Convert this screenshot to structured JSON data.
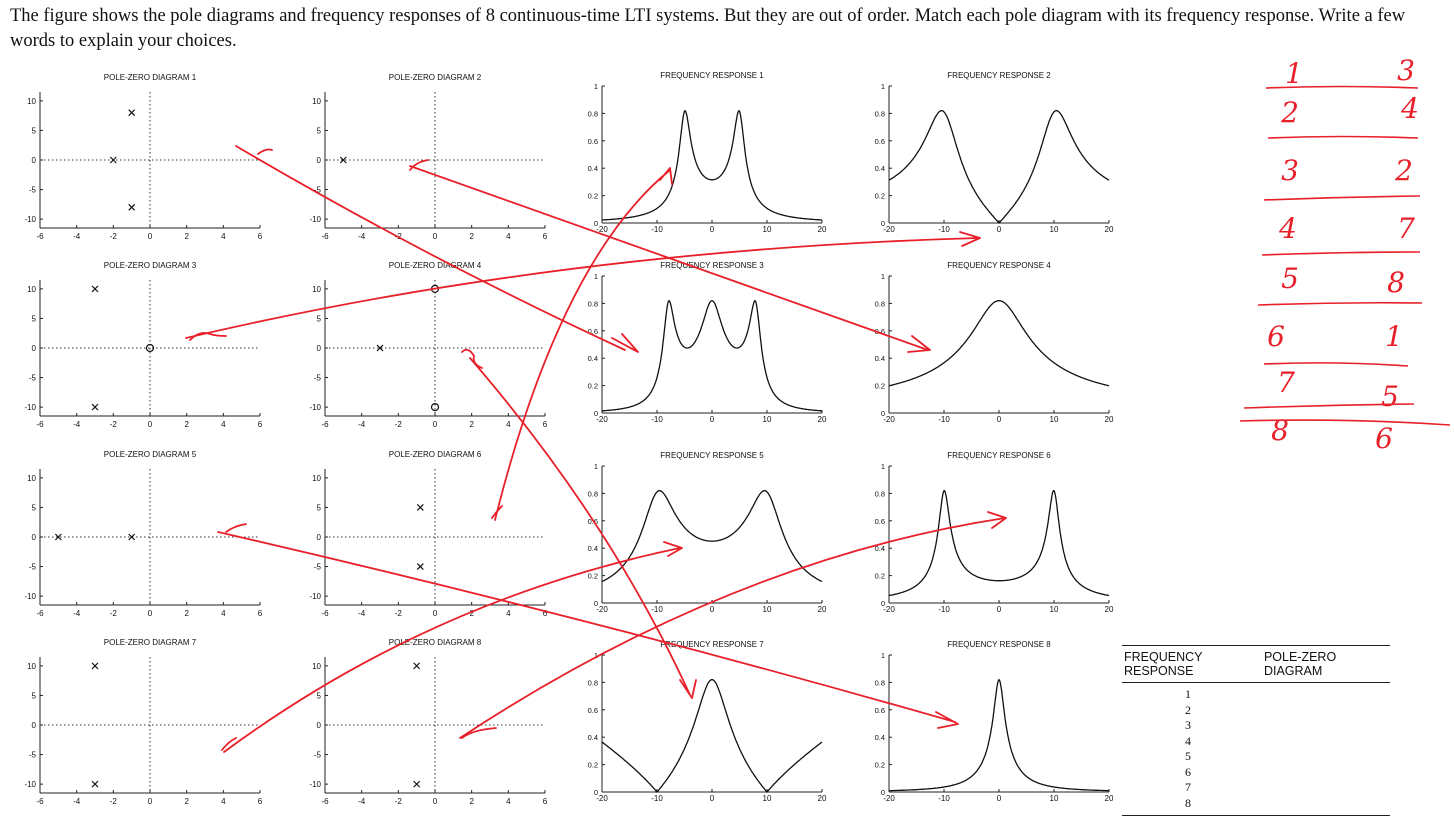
{
  "prompt": "The figure shows the pole diagrams and frequency responses of 8 continuous-time LTI systems. But they are out of order. Match each pole diagram with its frequency response. Write a few words to explain your choices.",
  "pole_zero_diagrams": [
    {
      "title": "POLE-ZERO DIAGRAM 1",
      "poles": [
        [
          -1,
          8
        ],
        [
          -1,
          -8
        ],
        [
          -2,
          0
        ]
      ],
      "zeros": []
    },
    {
      "title": "POLE-ZERO DIAGRAM 2",
      "poles": [
        [
          -5,
          0
        ]
      ],
      "zeros": []
    },
    {
      "title": "POLE-ZERO DIAGRAM 3",
      "poles": [
        [
          -3,
          10
        ],
        [
          -3,
          -10
        ]
      ],
      "zeros": [
        [
          0,
          0
        ]
      ]
    },
    {
      "title": "POLE-ZERO DIAGRAM 4",
      "poles": [
        [
          -3,
          0
        ]
      ],
      "zeros": [
        [
          0,
          10
        ],
        [
          0,
          -10
        ]
      ]
    },
    {
      "title": "POLE-ZERO DIAGRAM 5",
      "poles": [
        [
          -5,
          0
        ],
        [
          -1,
          0
        ]
      ],
      "zeros": []
    },
    {
      "title": "POLE-ZERO DIAGRAM 6",
      "poles": [
        [
          -0.8,
          5
        ],
        [
          -0.8,
          -5
        ]
      ],
      "zeros": []
    },
    {
      "title": "POLE-ZERO DIAGRAM 7",
      "poles": [
        [
          -3,
          10
        ],
        [
          -3,
          -10
        ]
      ],
      "zeros": []
    },
    {
      "title": "POLE-ZERO DIAGRAM 8",
      "poles": [
        [
          -1,
          10
        ],
        [
          -1,
          -10
        ]
      ],
      "zeros": []
    }
  ],
  "pz_axes": {
    "xticks": [
      "-6",
      "-4",
      "-2",
      "0",
      "2",
      "4",
      "6"
    ],
    "yticks": [
      "10",
      "5",
      "0",
      "-5",
      "-10"
    ]
  },
  "frequency_responses": [
    {
      "title": "FREQUENCY RESPONSE 1",
      "yticks": [
        "1",
        "0.8",
        "0.6",
        "0.4",
        "0.2",
        "0"
      ]
    },
    {
      "title": "FREQUENCY RESPONSE 2",
      "yticks": [
        "1",
        "0.8",
        "0.6",
        "0.4",
        "0.2",
        "0"
      ]
    },
    {
      "title": "FREQUENCY RESPONSE 3",
      "yticks": [
        "1",
        "0.8",
        "0.6",
        "0.4",
        "0.2",
        "0"
      ]
    },
    {
      "title": "FREQUENCY RESPONSE 4",
      "yticks": [
        "1",
        "0.8",
        "0.6",
        "0.4",
        "0.2",
        "0"
      ]
    },
    {
      "title": "FREQUENCY RESPONSE 5",
      "yticks": [
        "1",
        "0.8",
        "0.6",
        "0.4",
        "0.2",
        "0"
      ]
    },
    {
      "title": "FREQUENCY RESPONSE 6",
      "yticks": [
        "1",
        "0.8",
        "0.6",
        "0.4",
        "0.2",
        "0"
      ]
    },
    {
      "title": "FREQUENCY RESPONSE 7",
      "yticks": [
        "1",
        "0.8",
        "0.6",
        "0.4",
        "0.2",
        "0"
      ]
    },
    {
      "title": "FREQUENCY RESPONSE 8",
      "yticks": [
        "1",
        "0.8",
        "0.6",
        "0.4",
        "0.2",
        "0"
      ]
    }
  ],
  "fr_axes": {
    "xticks": [
      "-20",
      "-10",
      "0",
      "10",
      "20"
    ]
  },
  "handwritten_pairs": [
    [
      "1",
      "3"
    ],
    [
      "2",
      "4"
    ],
    [
      "3",
      "2"
    ],
    [
      "4",
      "7"
    ],
    [
      "5",
      "8"
    ],
    [
      "6",
      "1"
    ],
    [
      "7",
      "5"
    ],
    [
      "8",
      "6"
    ]
  ],
  "answer_table": {
    "col1": "FREQUENCY RESPONSE",
    "col2": "POLE-ZERO DIAGRAM",
    "rows": [
      "1",
      "2",
      "3",
      "4",
      "5",
      "6",
      "7",
      "8"
    ]
  },
  "ink_color": "#e8202a"
}
